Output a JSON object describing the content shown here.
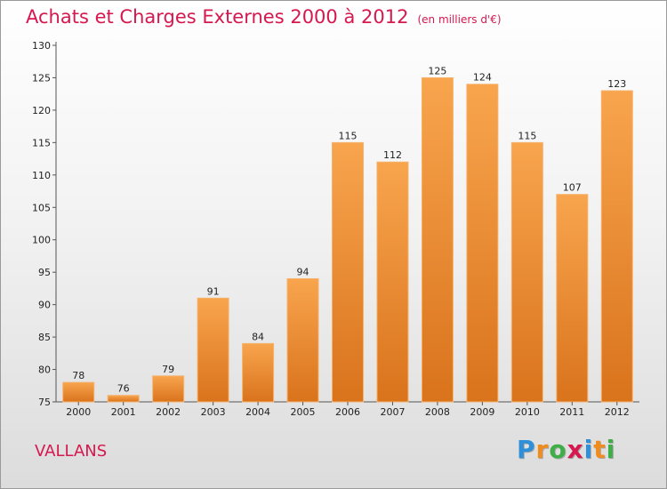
{
  "chart_data": {
    "type": "bar",
    "title": "Achats et Charges Externes 2000 à 2012",
    "subtitle": "(en milliers d'€)",
    "categories": [
      "2000",
      "2001",
      "2002",
      "2003",
      "2004",
      "2005",
      "2006",
      "2007",
      "2008",
      "2009",
      "2010",
      "2011",
      "2012"
    ],
    "values": [
      78,
      76,
      79,
      91,
      84,
      94,
      115,
      112,
      125,
      124,
      115,
      107,
      123
    ],
    "ylim": [
      75,
      130
    ],
    "yticks": [
      75,
      80,
      85,
      90,
      95,
      100,
      105,
      110,
      115,
      120,
      125,
      130
    ],
    "grid": false,
    "bar_color": "#f0933a"
  },
  "commune": "VALLANS",
  "brand": {
    "letters": [
      "P",
      "r",
      "o",
      "x",
      "i",
      "t",
      "i"
    ],
    "colors": [
      "#2f8fd8",
      "#f08c1e",
      "#3fae49",
      "#d6184f",
      "#2f8fd8",
      "#f08c1e",
      "#3fae49"
    ]
  },
  "colors": {
    "accent": "#d6184f"
  }
}
